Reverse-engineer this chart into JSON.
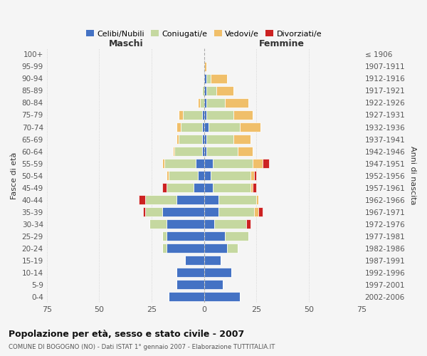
{
  "age_groups": [
    "100+",
    "95-99",
    "90-94",
    "85-89",
    "80-84",
    "75-79",
    "70-74",
    "65-69",
    "60-64",
    "55-59",
    "50-54",
    "45-49",
    "40-44",
    "35-39",
    "30-34",
    "25-29",
    "20-24",
    "15-19",
    "10-14",
    "5-9",
    "0-4"
  ],
  "birth_years": [
    "≤ 1906",
    "1907-1911",
    "1912-1916",
    "1917-1921",
    "1922-1926",
    "1927-1931",
    "1932-1936",
    "1937-1941",
    "1942-1946",
    "1947-1951",
    "1952-1956",
    "1957-1961",
    "1962-1966",
    "1967-1971",
    "1972-1976",
    "1977-1981",
    "1982-1986",
    "1987-1991",
    "1992-1996",
    "1997-2001",
    "2002-2006"
  ],
  "male_celibe": [
    0,
    0,
    0,
    0,
    0,
    1,
    1,
    1,
    1,
    4,
    3,
    5,
    13,
    20,
    18,
    18,
    18,
    9,
    13,
    13,
    17
  ],
  "male_coniugato": [
    0,
    0,
    0,
    1,
    2,
    9,
    10,
    11,
    13,
    15,
    14,
    13,
    15,
    8,
    8,
    2,
    2,
    0,
    0,
    0,
    0
  ],
  "male_vedovo": [
    0,
    0,
    0,
    0,
    1,
    2,
    2,
    1,
    1,
    1,
    1,
    0,
    0,
    0,
    0,
    0,
    0,
    0,
    0,
    0,
    0
  ],
  "male_divorziato": [
    0,
    0,
    0,
    0,
    0,
    0,
    0,
    0,
    0,
    0,
    0,
    2,
    3,
    1,
    0,
    0,
    0,
    0,
    0,
    0,
    0
  ],
  "female_nubile": [
    0,
    0,
    1,
    1,
    1,
    1,
    2,
    1,
    1,
    4,
    3,
    4,
    7,
    7,
    5,
    10,
    11,
    8,
    13,
    9,
    17
  ],
  "female_coniugata": [
    0,
    0,
    2,
    5,
    9,
    13,
    15,
    13,
    15,
    19,
    19,
    18,
    18,
    17,
    15,
    11,
    5,
    0,
    0,
    0,
    0
  ],
  "female_vedova": [
    0,
    1,
    8,
    8,
    11,
    9,
    10,
    8,
    7,
    5,
    2,
    1,
    1,
    2,
    0,
    0,
    0,
    0,
    0,
    0,
    0
  ],
  "female_divorziata": [
    0,
    0,
    0,
    0,
    0,
    0,
    0,
    0,
    0,
    3,
    1,
    2,
    0,
    2,
    2,
    0,
    0,
    0,
    0,
    0,
    0
  ],
  "color_celibe": "#4472c4",
  "color_coniugato": "#c5d8a0",
  "color_vedovo": "#f0bf6a",
  "color_divorziato": "#cc2222",
  "xlim": 75,
  "xtick_vals": [
    -75,
    -50,
    -25,
    0,
    25,
    50,
    75
  ],
  "title": "Popolazione per età, sesso e stato civile - 2007",
  "subtitle": "COMUNE DI BOGOGNO (NO) - Dati ISTAT 1° gennaio 2007 - Elaborazione TUTTITALIA.IT",
  "label_maschi": "Maschi",
  "label_femmine": "Femmine",
  "label_fasce": "Fasce di età",
  "label_anni": "Anni di nascita",
  "legend_labels": [
    "Celibi/Nubili",
    "Coniugati/e",
    "Vedovi/e",
    "Divorziati/e"
  ],
  "bg_color": "#f5f5f5",
  "bar_height": 0.78
}
